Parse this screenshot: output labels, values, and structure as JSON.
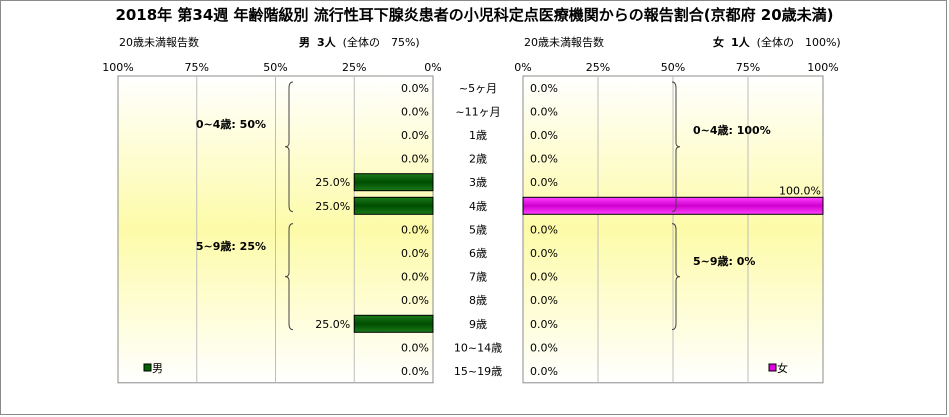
{
  "title": "2018年 第34週 年齢階級別 流行性耳下腺炎患者の小児科定点医療機関からの報告割合(京都府 20歳未満)",
  "header": {
    "left_count_label": "20歳未満報告数",
    "left_sex": "男",
    "left_count": "3人",
    "left_share": "(全体の　75%)",
    "right_count_label": "20歳未満報告数",
    "right_sex": "女",
    "right_count": "1人",
    "right_share": "(全体の　100%)"
  },
  "chart_data": [
    {
      "type": "bar",
      "orientation": "horizontal",
      "direction": "right-to-left",
      "series": [
        {
          "name": "男",
          "values": [
            0.0,
            0.0,
            0.0,
            0.0,
            25.0,
            25.0,
            0.0,
            0.0,
            0.0,
            0.0,
            25.0,
            0.0,
            0.0
          ]
        }
      ],
      "categories": [
        "~5ヶ月",
        "~11ヶ月",
        "1歳",
        "2歳",
        "3歳",
        "4歳",
        "5歳",
        "6歳",
        "7歳",
        "8歳",
        "9歳",
        "10~14歳",
        "15~19歳"
      ],
      "value_labels": [
        "0.0%",
        "0.0%",
        "0.0%",
        "0.0%",
        "25.0%",
        "25.0%",
        "0.0%",
        "0.0%",
        "0.0%",
        "0.0%",
        "25.0%",
        "0.0%",
        "0.0%"
      ],
      "xlim": [
        0,
        100
      ],
      "xticks": [
        "100%",
        "75%",
        "50%",
        "25%",
        "0%"
      ],
      "grid": true,
      "legend": "bottom-left",
      "bar_color": "#006400",
      "groups": [
        {
          "label": "0~4歳: 50%",
          "from": 0,
          "to": 5
        },
        {
          "label": "5~9歳: 25%",
          "from": 6,
          "to": 10
        }
      ]
    },
    {
      "type": "bar",
      "orientation": "horizontal",
      "direction": "left-to-right",
      "series": [
        {
          "name": "女",
          "values": [
            0.0,
            0.0,
            0.0,
            0.0,
            0.0,
            100.0,
            0.0,
            0.0,
            0.0,
            0.0,
            0.0,
            0.0,
            0.0
          ]
        }
      ],
      "categories": [
        "~5ヶ月",
        "~11ヶ月",
        "1歳",
        "2歳",
        "3歳",
        "4歳",
        "5歳",
        "6歳",
        "7歳",
        "8歳",
        "9歳",
        "10~14歳",
        "15~19歳"
      ],
      "value_labels": [
        "0.0%",
        "0.0%",
        "0.0%",
        "0.0%",
        "0.0%",
        "100.0%",
        "0.0%",
        "0.0%",
        "0.0%",
        "0.0%",
        "0.0%",
        "0.0%",
        "0.0%"
      ],
      "xlim": [
        0,
        100
      ],
      "xticks": [
        "0%",
        "25%",
        "50%",
        "75%",
        "100%"
      ],
      "grid": true,
      "legend": "bottom-right",
      "bar_color": "#e000e0",
      "groups": [
        {
          "label": "0~4歳: 100%",
          "from": 0,
          "to": 5
        },
        {
          "label": "5~9歳: 0%",
          "from": 6,
          "to": 10
        }
      ]
    }
  ]
}
